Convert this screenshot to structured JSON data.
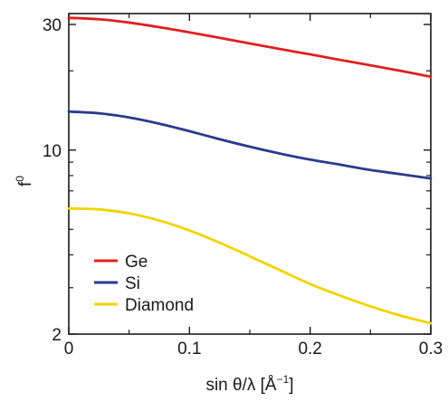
{
  "chart_data": {
    "type": "line",
    "xlabel": "sin θ/λ [Å",
    "xlabel_sup": "−1",
    "xlabel_end": "]",
    "ylabel": "f",
    "ylabel_sup": "0",
    "xlim": [
      0,
      0.3
    ],
    "ylim": [
      2,
      33
    ],
    "yscale": "log",
    "x_ticks": [
      {
        "value": 0,
        "label": "0"
      },
      {
        "value": 0.1,
        "label": "0.1"
      },
      {
        "value": 0.2,
        "label": "0.2"
      },
      {
        "value": 0.3,
        "label": "0.3"
      }
    ],
    "y_ticks": [
      {
        "value": 2,
        "label": "2"
      },
      {
        "value": 10,
        "label": "10"
      },
      {
        "value": 30,
        "label": "30"
      }
    ],
    "legend_position": "bottom-left",
    "grid": false,
    "series": [
      {
        "name": "Ge",
        "color": "#e02020",
        "x": [
          0,
          0.025,
          0.05,
          0.075,
          0.1,
          0.125,
          0.15,
          0.175,
          0.2,
          0.225,
          0.25,
          0.275,
          0.3
        ],
        "y": [
          31.8,
          31.4,
          30.5,
          29.3,
          28.0,
          26.7,
          25.4,
          24.2,
          23.1,
          22.0,
          21.0,
          20.0,
          19.0
        ]
      },
      {
        "name": "Si",
        "color": "#2b3a8c",
        "x": [
          0,
          0.025,
          0.05,
          0.075,
          0.1,
          0.125,
          0.15,
          0.175,
          0.2,
          0.225,
          0.25,
          0.275,
          0.3
        ],
        "y": [
          14.0,
          13.8,
          13.3,
          12.6,
          11.8,
          11.0,
          10.3,
          9.7,
          9.2,
          8.8,
          8.4,
          8.1,
          7.8
        ]
      },
      {
        "name": "Diamond",
        "color": "#f2d300",
        "x": [
          0,
          0.025,
          0.05,
          0.075,
          0.1,
          0.125,
          0.15,
          0.175,
          0.2,
          0.225,
          0.25,
          0.275,
          0.3
        ],
        "y": [
          6.0,
          5.95,
          5.75,
          5.4,
          4.95,
          4.45,
          3.95,
          3.5,
          3.1,
          2.8,
          2.55,
          2.35,
          2.2
        ]
      }
    ]
  }
}
